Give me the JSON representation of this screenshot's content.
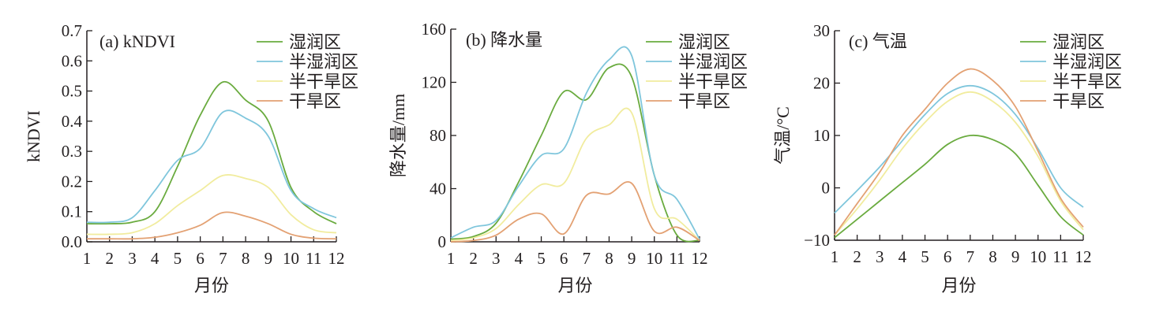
{
  "colors": {
    "湿润区": "#6aab3f",
    "半湿润区": "#7fc6dc",
    "半干旱区": "#f1ec9e",
    "干旱区": "#e3a173",
    "axis": "#231f20"
  },
  "chart_data": [
    {
      "type": "line",
      "title": "(a) kNDVI",
      "xlabel": "月份",
      "ylabel": "kNDVI",
      "x": [
        1,
        2,
        3,
        4,
        5,
        6,
        7,
        8,
        9,
        10,
        11,
        12
      ],
      "xticks": [
        "1",
        "2",
        "3",
        "4",
        "5",
        "6",
        "7",
        "8",
        "9",
        "10",
        "11",
        "12"
      ],
      "yticks": [
        "0.0",
        "0.1",
        "0.2",
        "0.3",
        "0.4",
        "0.5",
        "0.6",
        "0.7"
      ],
      "ylim": [
        0,
        0.7
      ],
      "legend": "top-right",
      "series": [
        {
          "name": "湿润区",
          "values": [
            0.06,
            0.06,
            0.065,
            0.1,
            0.25,
            0.42,
            0.53,
            0.47,
            0.4,
            0.18,
            0.1,
            0.06
          ]
        },
        {
          "name": "半湿润区",
          "values": [
            0.065,
            0.065,
            0.08,
            0.17,
            0.27,
            0.31,
            0.43,
            0.41,
            0.35,
            0.17,
            0.11,
            0.08
          ]
        },
        {
          "name": "半干旱区",
          "values": [
            0.025,
            0.025,
            0.03,
            0.06,
            0.12,
            0.17,
            0.22,
            0.21,
            0.18,
            0.09,
            0.04,
            0.03
          ]
        },
        {
          "name": "干旱区",
          "values": [
            0.01,
            0.01,
            0.01,
            0.015,
            0.03,
            0.055,
            0.097,
            0.085,
            0.06,
            0.025,
            0.012,
            0.01
          ]
        }
      ]
    },
    {
      "type": "line",
      "title": "(b) 降水量",
      "xlabel": "月份",
      "ylabel": "降水量/mm",
      "x": [
        1,
        2,
        3,
        4,
        5,
        6,
        7,
        8,
        9,
        10,
        11,
        12
      ],
      "xticks": [
        "1",
        "2",
        "3",
        "4",
        "5",
        "6",
        "7",
        "8",
        "9",
        "10",
        "11",
        "12"
      ],
      "yticks": [
        "0",
        "40",
        "80",
        "120",
        "160"
      ],
      "ylim": [
        0,
        160
      ],
      "legend": "top-right",
      "series": [
        {
          "name": "湿润区",
          "values": [
            2,
            4,
            14,
            45,
            80,
            113,
            107,
            131,
            124,
            50,
            5,
            1
          ]
        },
        {
          "name": "半湿润区",
          "values": [
            3,
            11,
            16,
            42,
            65,
            70,
            112,
            137,
            140,
            50,
            32,
            2
          ]
        },
        {
          "name": "半干旱区",
          "values": [
            1,
            3,
            10,
            28,
            43,
            44,
            78,
            88,
            97,
            25,
            17,
            1
          ]
        },
        {
          "name": "干旱区",
          "values": [
            0,
            1,
            5,
            17,
            21,
            6,
            35,
            36,
            44,
            8,
            11,
            1
          ]
        }
      ]
    },
    {
      "type": "line",
      "title": "(c) 气温",
      "xlabel": "月份",
      "ylabel": "气温/°C",
      "x": [
        1,
        2,
        3,
        4,
        5,
        6,
        7,
        8,
        9,
        10,
        11,
        12
      ],
      "xticks": [
        "1",
        "2",
        "3",
        "4",
        "5",
        "6",
        "7",
        "8",
        "9",
        "10",
        "11",
        "12"
      ],
      "yticks": [
        "−10",
        "0",
        "10",
        "20",
        "30"
      ],
      "ylim": [
        -10,
        30
      ],
      "legend": "top-right",
      "series": [
        {
          "name": "湿润区",
          "values": [
            -9.5,
            -6,
            -2.5,
            1,
            4.5,
            8.3,
            10,
            9.2,
            6.5,
            0.5,
            -5.5,
            -9
          ]
        },
        {
          "name": "半湿润区",
          "values": [
            -4.8,
            -0.5,
            4,
            9,
            14,
            18,
            19.5,
            18,
            14,
            7.5,
            0,
            -3.7
          ]
        },
        {
          "name": "半干旱区",
          "values": [
            -9,
            -4,
            1.5,
            7.5,
            12.5,
            16.5,
            18.3,
            16.5,
            12.5,
            6,
            -2.5,
            -8
          ]
        },
        {
          "name": "干旱区",
          "values": [
            -9,
            -3,
            3,
            10,
            15,
            20,
            22.7,
            20.5,
            15.5,
            7,
            -2,
            -7.5
          ]
        }
      ]
    }
  ]
}
